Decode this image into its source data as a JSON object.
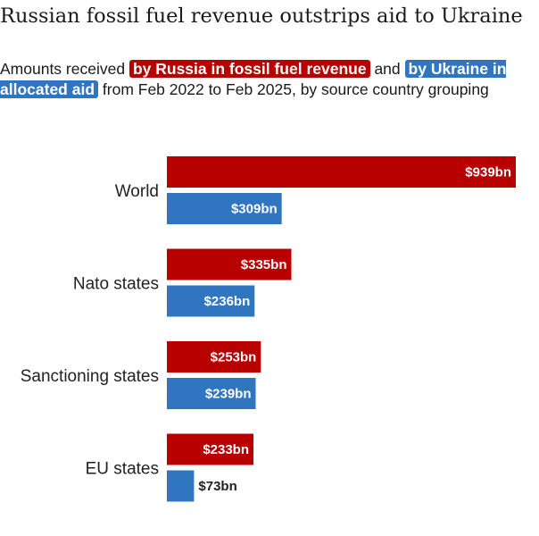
{
  "header": {
    "title": "Russian fossil fuel revenue outstrips aid to Ukraine",
    "subtitle_prefix": "Amounts received",
    "subtitle_highlight_russia": "by Russia in fossil fuel revenue",
    "subtitle_and": "and",
    "subtitle_highlight_ukraine": "by Ukraine in allocated aid",
    "subtitle_suffix": "from Feb 2022 to Feb 2025, by source country grouping"
  },
  "colors": {
    "russia": "#b80000",
    "ukraine": "#2f75bf"
  },
  "chart_data": {
    "type": "bar",
    "orientation": "horizontal",
    "categories": [
      "World",
      "Nato states",
      "Sanctioning states",
      "EU states"
    ],
    "series": [
      {
        "values": [
          939,
          335,
          253,
          233
        ],
        "labels": [
          "$939bn",
          "$335bn",
          "$253bn",
          "$233bn"
        ],
        "color": "#b80000"
      },
      {
        "values": [
          309,
          236,
          239,
          73
        ],
        "labels": [
          "$309bn",
          "$236bn",
          "$239bn",
          "$73bn"
        ],
        "color": "#2f75bf"
      }
    ],
    "xlim": [
      0,
      939
    ],
    "grid": false,
    "legend": "inline in subtitle"
  }
}
